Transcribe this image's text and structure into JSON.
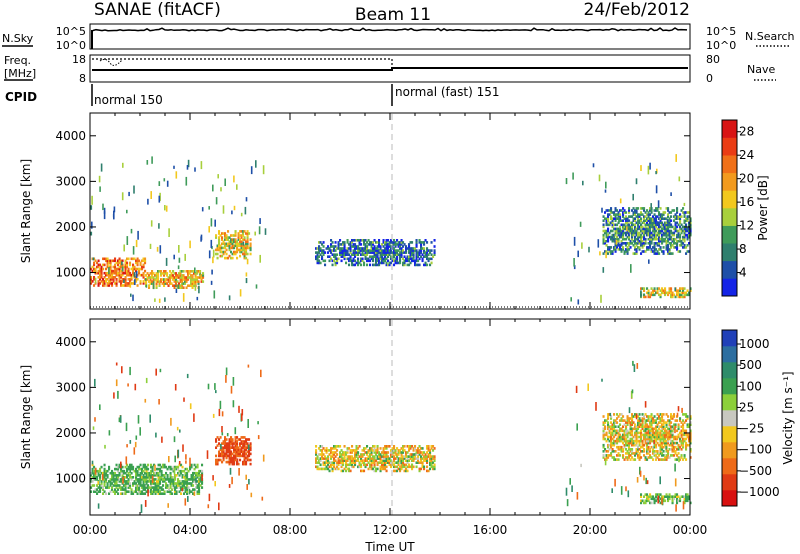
{
  "header": {
    "radar_title": "SANAE (fitACF)",
    "beam": "Beam 11",
    "date": "24/Feb/2012"
  },
  "summary_panels": {
    "nsky_label": "N.Sky",
    "nsky_ticks": [
      "10^5",
      "10^0"
    ],
    "nsearch_label": "N.Search",
    "nsearch_ticks": [
      "10^5",
      "10^0"
    ],
    "freq_label": "Freq.",
    "freq_unit": "[MHz]",
    "freq_ticks": [
      "18",
      "8"
    ],
    "nave_label": "Nave",
    "nave_ticks": [
      "80",
      "0"
    ],
    "cpid_label": "CPID",
    "cpid_modes": [
      {
        "name": "normal 150",
        "start_hour": 0
      },
      {
        "name": "normal (fast) 151",
        "start_hour": 12
      }
    ]
  },
  "axes": {
    "x_label": "Time UT",
    "x_ticks": [
      "00:00",
      "04:00",
      "08:00",
      "12:00",
      "16:00",
      "20:00",
      "00:00"
    ],
    "y_label": "Slant Range [km]",
    "y_ticks": [
      "1000",
      "2000",
      "3000",
      "4000"
    ]
  },
  "colorbars": {
    "power": {
      "label": "Power [dB]",
      "ticks": [
        "4",
        "8",
        "12",
        "16",
        "20",
        "24",
        "28"
      ],
      "colors": [
        "#1424e6",
        "#1e4fa8",
        "#2f7f6e",
        "#3f9b5a",
        "#a8cf3c",
        "#f2c81e",
        "#f29a1e",
        "#f07018",
        "#ea3c14",
        "#d81414"
      ]
    },
    "velocity": {
      "label": "Velocity [m s⁻¹]",
      "ticks": [
        "1000",
        "500",
        "100",
        "25",
        "−25",
        "−100",
        "−500",
        "−1000"
      ],
      "colors": [
        "#2040b8",
        "#2c6ea0",
        "#2e8c6a",
        "#3aa050",
        "#8ccf3a",
        "#c8c8c0",
        "#f2c81e",
        "#f09a1e",
        "#ee6a18",
        "#e03a14",
        "#d81010"
      ]
    }
  },
  "chart_data": [
    {
      "type": "heatmap",
      "title": "SANAE (fitACF)  Beam 11  24/Feb/2012",
      "xlabel": "Time UT",
      "ylabel": "Slant Range [km]",
      "xlim": [
        0,
        24
      ],
      "ylim": [
        200,
        4500
      ],
      "quantity": "Power [dB]",
      "zlim": [
        0,
        30
      ],
      "features": [
        {
          "t": [
            0.0,
            2.2
          ],
          "range_km": [
            700,
            1300
          ],
          "power_db": 22
        },
        {
          "t": [
            2.2,
            4.5
          ],
          "range_km": [
            650,
            1050
          ],
          "power_db": 18
        },
        {
          "t": [
            5.0,
            6.4
          ],
          "range_km": [
            1300,
            1900
          ],
          "power_db": 17
        },
        {
          "t": [
            9.0,
            13.8
          ],
          "range_km": [
            1150,
            1700
          ],
          "power_db": 6
        },
        {
          "t": [
            20.5,
            24.0
          ],
          "range_km": [
            1400,
            2400
          ],
          "power_db": 8
        },
        {
          "t": [
            22.0,
            24.0
          ],
          "range_km": [
            450,
            650
          ],
          "power_db": 16
        }
      ]
    },
    {
      "type": "heatmap",
      "xlabel": "Time UT",
      "ylabel": "Slant Range [km]",
      "xlim": [
        0,
        24
      ],
      "ylim": [
        200,
        4500
      ],
      "quantity": "Velocity [m s-1]",
      "zlim": [
        -1000,
        1000
      ],
      "features": [
        {
          "t": [
            0.0,
            4.5
          ],
          "range_km": [
            650,
            1300
          ],
          "velocity_ms": 150
        },
        {
          "t": [
            5.0,
            6.4
          ],
          "range_km": [
            1300,
            1900
          ],
          "velocity_ms": -300
        },
        {
          "t": [
            9.0,
            13.8
          ],
          "range_km": [
            1150,
            1700
          ],
          "velocity_ms": 0
        },
        {
          "t": [
            20.5,
            24.0
          ],
          "range_km": [
            1400,
            2400
          ],
          "velocity_ms": 0
        },
        {
          "t": [
            22.0,
            24.0
          ],
          "range_km": [
            450,
            650
          ],
          "velocity_ms": 120
        }
      ]
    }
  ]
}
